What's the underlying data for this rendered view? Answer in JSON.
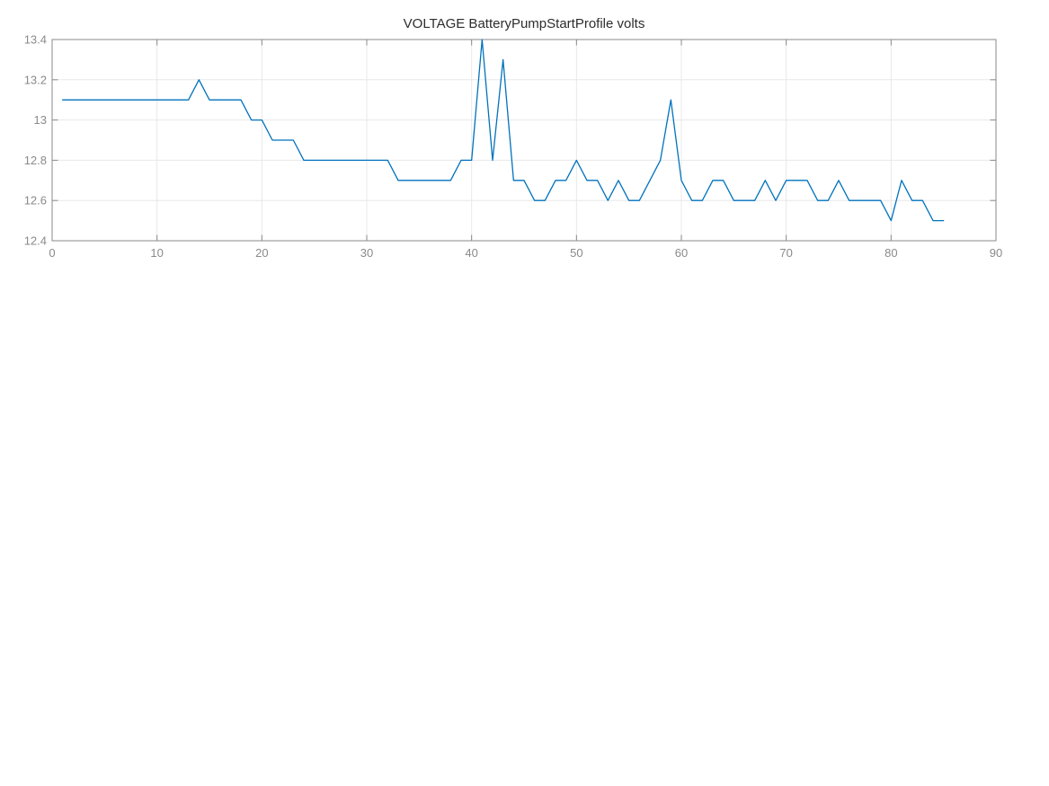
{
  "figure": {
    "background": "#ffffff"
  },
  "chart_data": {
    "type": "line",
    "title": "VOLTAGE BatteryPumpStartProfile volts",
    "xlabel": "",
    "ylabel": "",
    "units": "volts",
    "series_name": "VOLTAGE BatteryPumpStartProfile",
    "xlim": [
      0,
      90
    ],
    "ylim": [
      12.4,
      13.4
    ],
    "x_ticks": [
      0,
      10,
      20,
      30,
      40,
      50,
      60,
      70,
      80,
      90
    ],
    "x_tick_labels": [
      "0",
      "10",
      "20",
      "30",
      "40",
      "50",
      "60",
      "70",
      "80",
      "90"
    ],
    "y_ticks": [
      12.4,
      12.6,
      12.8,
      13.0,
      13.2,
      13.4
    ],
    "y_tick_labels": [
      "12.4",
      "12.6",
      "12.8",
      "13",
      "13.2",
      "13.4"
    ],
    "grid": true,
    "box": true,
    "legend": false,
    "line_color": "#0072BD",
    "x": [
      1,
      2,
      3,
      4,
      5,
      6,
      7,
      8,
      9,
      10,
      11,
      12,
      13,
      14,
      15,
      16,
      17,
      18,
      19,
      20,
      21,
      22,
      23,
      24,
      25,
      26,
      27,
      28,
      29,
      30,
      31,
      32,
      33,
      34,
      35,
      36,
      37,
      38,
      39,
      40,
      41,
      42,
      43,
      44,
      45,
      46,
      47,
      48,
      49,
      50,
      51,
      52,
      53,
      54,
      55,
      56,
      57,
      58,
      59,
      60,
      61,
      62,
      63,
      64,
      65,
      66,
      67,
      68,
      69,
      70,
      71,
      72,
      73,
      74,
      75,
      76,
      77,
      78,
      79,
      80,
      81,
      82,
      83,
      84,
      85
    ],
    "y": [
      13.1,
      13.1,
      13.1,
      13.1,
      13.1,
      13.1,
      13.1,
      13.1,
      13.1,
      13.1,
      13.1,
      13.1,
      13.1,
      13.2,
      13.1,
      13.1,
      13.1,
      13.1,
      13.0,
      13.0,
      12.9,
      12.9,
      12.9,
      12.8,
      12.8,
      12.8,
      12.8,
      12.8,
      12.8,
      12.8,
      12.8,
      12.8,
      12.7,
      12.7,
      12.7,
      12.7,
      12.7,
      12.7,
      12.8,
      12.8,
      13.4,
      12.8,
      13.3,
      12.7,
      12.7,
      12.6,
      12.6,
      12.7,
      12.7,
      12.8,
      12.7,
      12.7,
      12.6,
      12.7,
      12.6,
      12.6,
      12.7,
      12.8,
      13.1,
      12.7,
      12.6,
      12.6,
      12.7,
      12.7,
      12.6,
      12.6,
      12.6,
      12.7,
      12.6,
      12.7,
      12.7,
      12.7,
      12.6,
      12.6,
      12.7,
      12.6,
      12.6,
      12.6,
      12.6,
      12.5,
      12.7,
      12.6,
      12.6,
      12.5,
      12.5
    ]
  },
  "style": {
    "grid_color": "#e8e8e8",
    "axis_color": "#8a8a8a",
    "tick_color": "#8a8a8a",
    "tick_label_color": "#8a8a8a",
    "title_color": "#2d2d2d",
    "background": "#ffffff"
  }
}
